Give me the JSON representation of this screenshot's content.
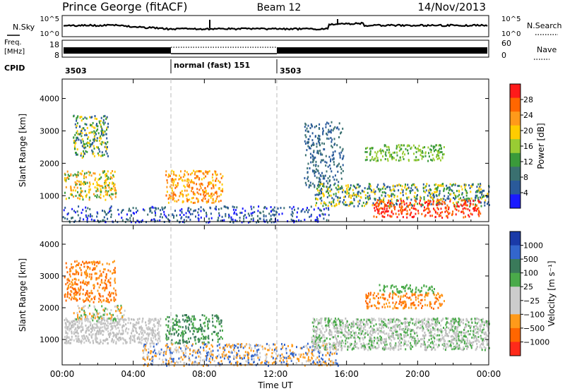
{
  "header": {
    "station": "Prince George (fitACF)",
    "beam": "Beam 12",
    "date": "14/Nov/2013"
  },
  "top_panels": {
    "nsky_label": "N.Sky",
    "nsky_ticks": [
      "10^5",
      "10^0"
    ],
    "nsearch_label": "N.Search",
    "nsearch_ticks": [
      "10^5",
      "10^0"
    ],
    "freq_label_line1": "Freq.",
    "freq_label_line2": "[MHz]",
    "freq_ticks": [
      "18",
      "8"
    ],
    "nave_label": "Nave",
    "nave_ticks": [
      "60",
      "0"
    ],
    "cpid_label": "CPID",
    "cpid_segments": [
      {
        "text": "3503",
        "start_hour": 0,
        "end_hour": 6
      },
      {
        "text": "normal (fast) 151",
        "start_hour": 6,
        "end_hour": 12
      },
      {
        "text": "3503",
        "start_hour": 12,
        "end_hour": 24
      }
    ]
  },
  "axes": {
    "ylabel": "Slant Range [km]",
    "yticks": [
      1000,
      2000,
      3000,
      4000
    ],
    "ylim": [
      200,
      4600
    ],
    "xlabel": "Time UT",
    "xticks": [
      "00:00",
      "04:00",
      "08:00",
      "12:00",
      "16:00",
      "20:00",
      "00:00"
    ],
    "xlim_hours": [
      0,
      24
    ]
  },
  "power_colorbar": {
    "label": "Power [dB]",
    "ticks": [
      "28",
      "24",
      "20",
      "16",
      "12",
      "8",
      "4"
    ],
    "colors": [
      "#ff1a1a",
      "#ff6600",
      "#ff9a1a",
      "#ffcc00",
      "#99cc33",
      "#3a9a3a",
      "#3a7070",
      "#2a5a9a",
      "#1a1aff"
    ]
  },
  "velocity_colorbar": {
    "label": "Velocity [m s⁻¹]",
    "ticks": [
      "1000",
      "500",
      "100",
      "25",
      "−25",
      "−100",
      "−500",
      "−1000"
    ],
    "colors": [
      "#1a3aa8",
      "#3366cc",
      "#3a7a5a",
      "#4aaa4a",
      "#cccccc",
      "#cccccc",
      "#ff9a1a",
      "#ff6600",
      "#ff2a1a"
    ]
  },
  "chart_data": [
    {
      "type": "heatmap",
      "title": "Power",
      "x_unit": "hour UT",
      "y_unit": "km",
      "regions": [
        {
          "x": [
            0.1,
            3.0
          ],
          "y": [
            900,
            1800
          ],
          "level": "high",
          "colors": [
            "#3a9a3a",
            "#ffcc00",
            "#ff9a1a"
          ]
        },
        {
          "x": [
            0.6,
            2.6
          ],
          "y": [
            2200,
            3500
          ],
          "level": "medium",
          "colors": [
            "#3a9a3a",
            "#2a5a9a",
            "#ffcc00"
          ]
        },
        {
          "x": [
            5.8,
            9.0
          ],
          "y": [
            800,
            1800
          ],
          "level": "high",
          "colors": [
            "#ff9a1a",
            "#ff6600",
            "#ffcc00"
          ]
        },
        {
          "x": [
            0.0,
            15.0
          ],
          "y": [
            200,
            700
          ],
          "level": "low",
          "colors": [
            "#2a5a9a",
            "#1a1aff",
            "#3a7070"
          ]
        },
        {
          "x": [
            14.2,
            24.0
          ],
          "y": [
            700,
            1400
          ],
          "level": "medium",
          "colors": [
            "#3a9a3a",
            "#ffcc00",
            "#2a5a9a"
          ]
        },
        {
          "x": [
            17.5,
            23.5
          ],
          "y": [
            350,
            900
          ],
          "level": "high",
          "colors": [
            "#ff1a1a",
            "#ff6600"
          ]
        },
        {
          "x": [
            17.0,
            21.5
          ],
          "y": [
            2100,
            2600
          ],
          "level": "medium",
          "colors": [
            "#3a9a3a",
            "#99cc33"
          ]
        },
        {
          "x": [
            13.6,
            15.8
          ],
          "y": [
            1200,
            3300
          ],
          "level": "low",
          "colors": [
            "#2a5a9a",
            "#3a7070"
          ]
        }
      ]
    },
    {
      "type": "heatmap",
      "title": "Velocity",
      "x_unit": "hour UT",
      "y_unit": "km",
      "regions": [
        {
          "x": [
            0.1,
            3.0
          ],
          "y": [
            2200,
            3500
          ],
          "level": "negative",
          "colors": [
            "#ff9a1a",
            "#ff6600"
          ]
        },
        {
          "x": [
            0.1,
            5.5
          ],
          "y": [
            900,
            1700
          ],
          "level": "near-zero",
          "colors": [
            "#cccccc",
            "#bbbbbb"
          ]
        },
        {
          "x": [
            0.6,
            3.5
          ],
          "y": [
            1600,
            2100
          ],
          "level": "mixed",
          "colors": [
            "#ff9a1a",
            "#4aaa4a",
            "#cccccc"
          ]
        },
        {
          "x": [
            5.8,
            9.0
          ],
          "y": [
            900,
            1800
          ],
          "level": "positive",
          "colors": [
            "#4aaa4a",
            "#3a7a5a"
          ]
        },
        {
          "x": [
            4.5,
            15.5
          ],
          "y": [
            200,
            900
          ],
          "level": "mixed",
          "colors": [
            "#ff9a1a",
            "#cccccc",
            "#3366cc"
          ]
        },
        {
          "x": [
            14.0,
            24.0
          ],
          "y": [
            700,
            1700
          ],
          "level": "near-zero",
          "colors": [
            "#cccccc",
            "#bbbbbb",
            "#4aaa4a"
          ]
        },
        {
          "x": [
            17.0,
            21.5
          ],
          "y": [
            2000,
            2500
          ],
          "level": "negative",
          "colors": [
            "#ff6600",
            "#ff9a1a"
          ]
        },
        {
          "x": [
            17.8,
            21.0
          ],
          "y": [
            2500,
            2750
          ],
          "level": "positive",
          "colors": [
            "#4aaa4a"
          ]
        }
      ]
    }
  ]
}
